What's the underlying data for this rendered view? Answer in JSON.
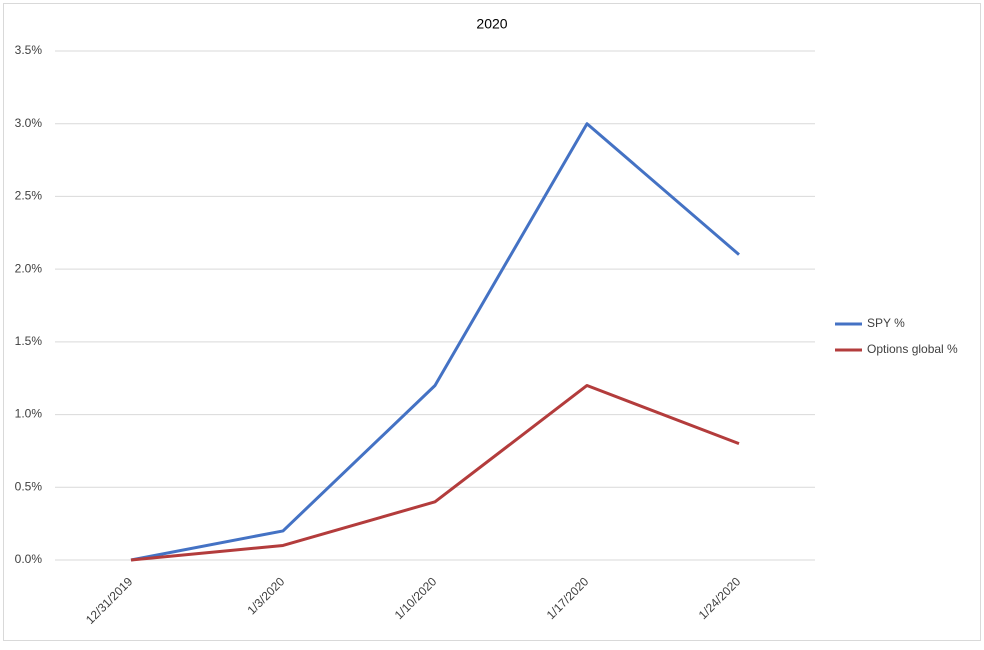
{
  "chart_data": {
    "type": "line",
    "title": "2020",
    "categories": [
      "12/31/2019",
      "1/3/2020",
      "1/10/2020",
      "1/17/2020",
      "1/24/2020"
    ],
    "series": [
      {
        "name": "SPY %",
        "color": "#4472c4",
        "values": [
          0,
          0.2,
          1.2,
          3.0,
          2.1
        ]
      },
      {
        "name": "Options global %",
        "color": "#b33c3c",
        "values": [
          0,
          0.1,
          0.4,
          1.2,
          0.8
        ]
      }
    ],
    "ylim": [
      0,
      3.5
    ],
    "yticks": [
      {
        "value": 0,
        "label": "0.0%"
      },
      {
        "value": 0.5,
        "label": "0.5%"
      },
      {
        "value": 1,
        "label": "1.0%"
      },
      {
        "value": 1.5,
        "label": "1.5%"
      },
      {
        "value": 2,
        "label": "2.0%"
      },
      {
        "value": 2.5,
        "label": "2.5%"
      },
      {
        "value": 3,
        "label": "3.0%"
      },
      {
        "value": 3.5,
        "label": "3.5%"
      }
    ],
    "grid": true,
    "legend": "right"
  }
}
